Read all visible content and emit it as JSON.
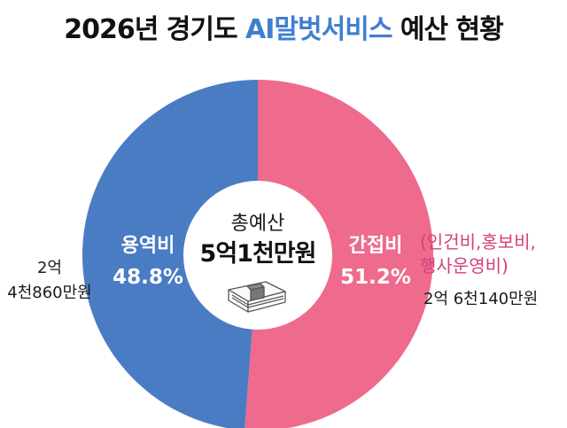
{
  "title": {
    "prefix": "2026년 경기도",
    "accent": "AI말벗서비스",
    "suffix": "예산 현황"
  },
  "chart_data": {
    "type": "pie",
    "title": "2026년 경기도 AI말벗서비스 예산 현황",
    "center_label": "총예산",
    "center_value": "5억1천만원",
    "slices": [
      {
        "label": "용역비",
        "percent": 48.8,
        "percent_text": "48.8%",
        "amount": [
          "2억",
          "4천860만원"
        ],
        "color": "#4a7cc4"
      },
      {
        "label": "간접비",
        "percent": 51.2,
        "percent_text": "51.2%",
        "amount": [
          "2억 6천140만원"
        ],
        "note": [
          "(인건비,홍보비,",
          "행사운영비)"
        ],
        "color": "#ee6b8e"
      }
    ]
  }
}
